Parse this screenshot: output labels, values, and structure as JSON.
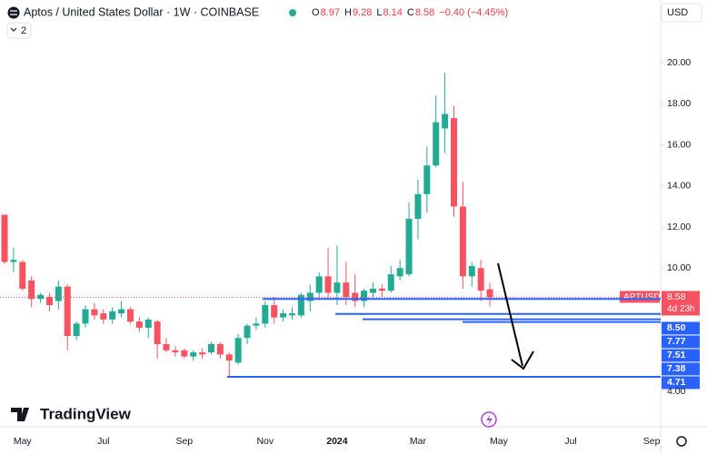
{
  "brand": "TradingView",
  "chart_data": {
    "type": "candlestick",
    "title": "Aptos / United States Dollar · 1W · COINBASE",
    "currency": "USD",
    "indicator_count": "2",
    "change_text": "−0.40 (−4.45%)",
    "ohlc_keys": [
      "O",
      "H",
      "L",
      "C"
    ],
    "categories": [
      null,
      null,
      "May",
      null,
      null,
      null,
      null,
      null,
      null,
      null,
      null,
      "Jul",
      null,
      null,
      null,
      null,
      null,
      null,
      null,
      null,
      "Sep",
      null,
      null,
      null,
      null,
      null,
      null,
      null,
      null,
      "Nov",
      null,
      null,
      null,
      null,
      null,
      null,
      null,
      "2024",
      null,
      null,
      null,
      null,
      null,
      null,
      null,
      null,
      "Mar",
      null,
      null,
      null,
      null,
      null,
      null,
      null,
      null,
      "May",
      null,
      null,
      null,
      null,
      null,
      null,
      null,
      "Jul",
      null,
      null,
      null,
      null,
      null,
      null,
      null,
      null,
      "Sep"
    ],
    "series": [
      {
        "name": "APTUSD",
        "up_color": "#22ab94",
        "down_color": "#f7525f",
        "open": [
          12.6,
          10.3,
          10.3,
          9.4,
          8.5,
          8.6,
          8.4,
          9.1,
          6.7,
          7.3,
          8.0,
          7.8,
          7.5,
          7.8,
          8.0,
          7.4,
          7.1,
          7.4,
          6.3,
          6.0,
          6.0,
          5.7,
          5.9,
          5.9,
          6.3,
          5.8,
          5.4,
          6.6,
          7.2,
          7.3,
          8.2,
          7.6,
          7.7,
          7.7,
          8.4,
          8.8,
          9.6,
          8.8,
          9.3,
          8.8,
          8.4,
          8.8,
          9.0,
          8.9,
          9.6,
          9.7,
          12.4,
          13.6,
          15.0,
          16.8,
          17.3,
          13.0,
          9.6,
          10.0,
          8.97,
          null,
          null,
          null,
          null,
          null,
          null,
          null,
          null,
          null,
          null,
          null,
          null,
          null,
          null,
          null,
          null,
          null,
          null
        ],
        "high": [
          12.6,
          11.0,
          10.4,
          9.6,
          8.8,
          8.8,
          9.4,
          9.2,
          7.4,
          8.2,
          8.3,
          8.0,
          8.1,
          8.4,
          8.1,
          7.6,
          7.6,
          7.5,
          6.6,
          6.2,
          6.1,
          6.0,
          6.1,
          6.4,
          6.4,
          5.9,
          6.8,
          7.3,
          7.6,
          8.4,
          8.6,
          8.0,
          8.1,
          8.8,
          9.2,
          9.8,
          11.0,
          11.1,
          10.3,
          9.7,
          9.0,
          9.3,
          9.2,
          10.1,
          10.4,
          13.2,
          14.3,
          15.9,
          18.4,
          19.5,
          17.9,
          14.2,
          10.3,
          10.4,
          9.28,
          null,
          null,
          null,
          null,
          null,
          null,
          null,
          null,
          null,
          null,
          null,
          null,
          null,
          null,
          null,
          null,
          null,
          null
        ],
        "low": [
          10.2,
          9.8,
          8.9,
          8.1,
          8.3,
          7.9,
          8.0,
          6.0,
          6.5,
          7.1,
          7.5,
          7.3,
          7.3,
          7.6,
          7.3,
          6.9,
          6.6,
          5.6,
          5.9,
          5.7,
          5.6,
          5.5,
          5.6,
          5.8,
          5.6,
          4.71,
          5.3,
          6.3,
          7.0,
          7.1,
          7.3,
          7.4,
          7.5,
          7.6,
          7.9,
          8.5,
          8.5,
          8.2,
          8.2,
          8.1,
          8.1,
          8.6,
          8.6,
          8.8,
          9.4,
          9.6,
          11.4,
          12.7,
          14.9,
          15.6,
          12.5,
          9.0,
          9.1,
          8.4,
          8.14,
          null,
          null,
          null,
          null,
          null,
          null,
          null,
          null,
          null,
          null,
          null,
          null,
          null,
          null,
          null,
          null,
          null,
          null
        ],
        "close": [
          10.3,
          10.4,
          9.0,
          8.5,
          8.7,
          8.2,
          9.1,
          6.7,
          7.3,
          8.0,
          7.7,
          7.5,
          7.9,
          8.0,
          7.4,
          7.1,
          7.5,
          6.3,
          6.0,
          5.9,
          5.7,
          5.9,
          5.8,
          6.3,
          5.8,
          5.5,
          6.6,
          7.2,
          7.3,
          8.2,
          7.6,
          7.8,
          7.8,
          8.7,
          8.8,
          9.6,
          8.8,
          9.3,
          8.6,
          8.4,
          8.9,
          9.0,
          8.9,
          9.7,
          10.0,
          12.4,
          13.6,
          15.0,
          17.1,
          17.5,
          13.0,
          9.6,
          10.1,
          8.9,
          8.58,
          null,
          null,
          null,
          null,
          null,
          null,
          null,
          null,
          null,
          null,
          null,
          null,
          null,
          null,
          null,
          null,
          null,
          null
        ]
      }
    ],
    "countdown": "4d 23h",
    "levels": {
      "color": "#2962ff",
      "values": [
        8.5,
        7.77,
        7.51,
        7.38,
        4.71
      ],
      "value_labels": [
        "8.50",
        "7.77",
        "7.51",
        "7.38",
        "4.71"
      ]
    },
    "ylim": [
      2.28,
      23.05
    ],
    "yticks": [
      {
        "value": 4,
        "label": "4.00"
      },
      {
        "value": 10,
        "label": "10.00"
      },
      {
        "value": 12,
        "label": "12.00"
      },
      {
        "value": 14,
        "label": "14.00"
      },
      {
        "value": 16,
        "label": "16.00"
      },
      {
        "value": 18,
        "label": "18.00"
      },
      {
        "value": 20,
        "label": "20.00"
      }
    ]
  }
}
